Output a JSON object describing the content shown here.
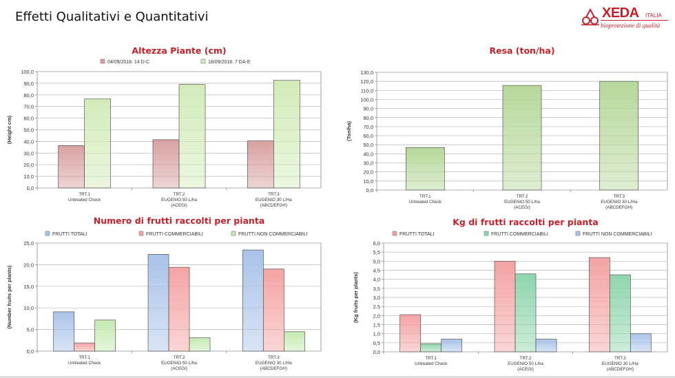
{
  "page": {
    "title": "Effetti Qualitativi e Quantitativi"
  },
  "logo": {
    "brand": "XEDA",
    "suffix": "ITALIA",
    "tagline": "bioprotezione di qualità",
    "brand_color": "#c8202a"
  },
  "chart_data": [
    {
      "id": "chart-altezza",
      "type": "bar",
      "title": "Altezza Piante (cm)",
      "ylabel": "(Height cm)",
      "ylim": [
        0,
        100
      ],
      "ytick_step": 10,
      "legend_position": "top",
      "categories": [
        [
          "TRT.1",
          "Untreated Check"
        ],
        [
          "TRT.2",
          "EUGENIO 50 L/ha",
          "(ACEGI)"
        ],
        [
          "TRT.3",
          "EUGENIO 30 L/Ha",
          "(ABCDEFGH)"
        ]
      ],
      "series": [
        {
          "name": "04/09/2018.  14 D-C",
          "color": "#d9a1a1",
          "values": [
            36.5,
            41.5,
            40.5
          ]
        },
        {
          "name": "18/09/2018.  7 DA-E",
          "color": "#d2ecb9",
          "values": [
            76.5,
            89.0,
            92.5
          ]
        }
      ]
    },
    {
      "id": "chart-resa",
      "type": "bar",
      "title": "Resa (ton/ha)",
      "ylabel": "(Ton/ha)",
      "ylim": [
        0,
        130
      ],
      "ytick_step": 10,
      "legend_position": "none",
      "categories": [
        [
          "TRT.1",
          "Untreated Check"
        ],
        [
          "TRT.2",
          "EUGENIO 50 L/ha",
          "(ACEGI)"
        ],
        [
          "TRT.3",
          "EUGENIO 30 L/Ha",
          "(ABCDEFGH)"
        ]
      ],
      "series": [
        {
          "name": "",
          "color": "#b6d89a",
          "values": [
            47.0,
            115.5,
            120.0
          ]
        }
      ]
    },
    {
      "id": "chart-numero",
      "type": "bar",
      "title": "Numero di frutti raccolti per pianta",
      "ylabel": "(Number fruits per plants)",
      "ylim": [
        0,
        25
      ],
      "ytick_step": 5,
      "legend_position": "top",
      "categories": [
        [
          "TRT.1",
          "Untreated Check"
        ],
        [
          "TRT.2",
          "EUGENIO 50 L/ha",
          "(ACEGI)"
        ],
        [
          "TRT.3",
          "EUGENIO 30 L/Ha",
          "(ABCDEFGH)"
        ]
      ],
      "series": [
        {
          "name": "FRUTTI TOTALI",
          "color": "#a9c3e8",
          "values": [
            9.1,
            22.4,
            23.4
          ]
        },
        {
          "name": "FRUTTI COMMERCIABILI",
          "color": "#f4a3a3",
          "values": [
            1.9,
            19.4,
            19.0
          ]
        },
        {
          "name": "FRUTTI NON COMMERCIABILI",
          "color": "#c4eab0",
          "values": [
            7.2,
            3.1,
            4.5
          ]
        }
      ]
    },
    {
      "id": "chart-kg",
      "type": "bar",
      "title": "Kg di frutti raccolti per pianta",
      "ylabel": "(Kg fruits per plants)",
      "ylim": [
        0,
        6
      ],
      "ytick_step": 0.5,
      "legend_position": "top",
      "categories": [
        [
          "TRT.1",
          "Untreated Check"
        ],
        [
          "TRT.2",
          "EUGENIO 50 L/ha",
          "(ACEGI)"
        ],
        [
          "TRT.3",
          "EUGENIO 30 L/Ha",
          "(ABCDEFGH)"
        ]
      ],
      "series": [
        {
          "name": "FRUTTI TOTALI",
          "color": "#f4a3a3",
          "values": [
            2.05,
            5.0,
            5.2
          ]
        },
        {
          "name": "FRUTTI COMMERCIABILI",
          "color": "#8fd6ad",
          "values": [
            0.45,
            4.3,
            4.25
          ]
        },
        {
          "name": "FRUTTI NON COMMERCIABILI",
          "color": "#a9c3e8",
          "values": [
            0.7,
            0.7,
            1.0
          ]
        }
      ]
    }
  ]
}
